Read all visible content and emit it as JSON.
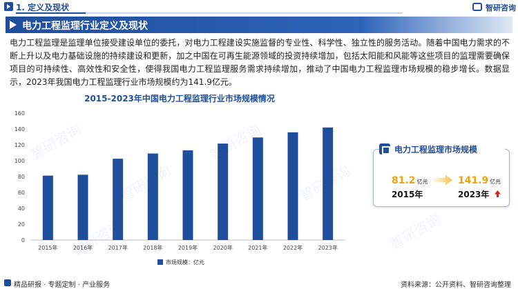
{
  "header": {
    "section": "1. 定义及现状",
    "logo_text": "智研咨询"
  },
  "title": "电力工程监理行业定义及现状",
  "intro": "电力工程监理是监理单位接受建设单位的委托，对电力工程建设实施监督的专业性、科学性、独立性的服务活动。随着中国电力需求的不断上升以及电力基础设施的持续建设和更新，加之中国在可再生能源领域的投资持续增加，包括太阳能和风能等这些项目的监理需要确保项目的可持续性、高效性和安全性，使得我国电力工程监理服务需求持续增加，推动了中国电力工程监理市场规模的稳步增长。数据显示，2023年我国电力工程监理行业市场规模约为141.9亿元。",
  "card": {
    "title": "电力工程监理市场规模",
    "left_value": "81.2",
    "left_unit": "亿元",
    "left_year": "2015年",
    "right_value": "141.9",
    "right_unit": "亿元",
    "right_year": "2023年"
  },
  "footer": {
    "left": "精品研报 · 专题定制 · 产业服务",
    "right": "资料来源：公开资料、智研咨询整理"
  },
  "watermark": "智研咨询",
  "colors": {
    "primary": "#1f4e9c",
    "bar": "#1f4e9c",
    "highlight": "#f0a30a",
    "up": "#d7261e"
  },
  "chart_data": {
    "type": "bar",
    "title": "2015-2023年中国电力工程监理行业市场规模情况",
    "categories": [
      "2015年",
      "2016年",
      "2017年",
      "2018年",
      "2019年",
      "2020年",
      "2021年",
      "2022年",
      "2023年"
    ],
    "series": [
      {
        "name": "市场规模：亿元",
        "values": [
          81.2,
          82.3,
          102.5,
          109.1,
          113.1,
          121.6,
          129.3,
          135.8,
          141.9
        ]
      }
    ],
    "ylim": [
      0,
      160
    ],
    "yticks": [
      0,
      20,
      40,
      60,
      80,
      100,
      120,
      140,
      160
    ],
    "grid": false,
    "legend": "bottom"
  }
}
